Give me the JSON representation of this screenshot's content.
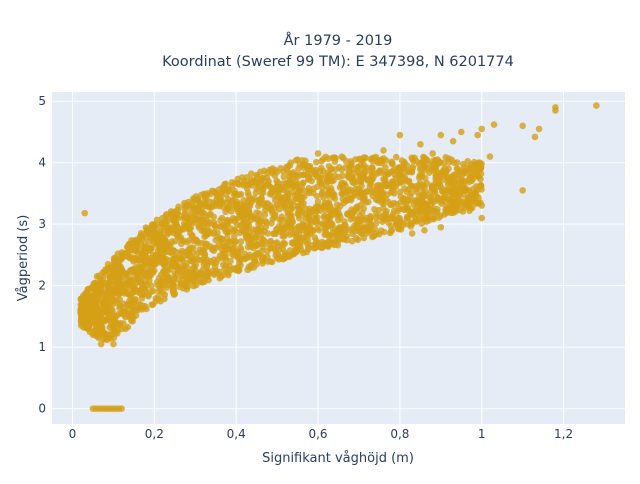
{
  "chart_data": {
    "type": "scatter",
    "title_line1": "År 1979 - 2019",
    "title_line2": "Koordinat (Sweref 99 TM): E 347398, N 6201774",
    "xlabel": "Signifikant våghöjd (m)",
    "ylabel": "Vågperiod (s)",
    "xlim": [
      -0.05,
      1.35
    ],
    "ylim": [
      -0.25,
      5.15
    ],
    "xticks": [
      0,
      0.2,
      0.4,
      0.6,
      0.8,
      1,
      1.2
    ],
    "xtick_labels": [
      "0",
      "0,2",
      "0,4",
      "0,6",
      "0,8",
      "1",
      "1,2"
    ],
    "yticks": [
      0,
      1,
      2,
      3,
      4,
      5
    ],
    "ytick_labels": [
      "0",
      "1",
      "2",
      "3",
      "4",
      "5"
    ],
    "grid": true,
    "marker_color": "#D4A017",
    "plot_bg": "#E5ECF6",
    "series": [
      {
        "envelope": {
          "x": [
            0.02,
            0.05,
            0.08,
            0.12,
            0.16,
            0.2,
            0.25,
            0.3,
            0.35,
            0.4,
            0.45,
            0.5,
            0.55,
            0.6,
            0.65,
            0.7,
            0.75,
            0.8,
            0.85,
            0.9,
            0.95,
            1.0
          ],
          "lower": [
            1.35,
            1.2,
            1.05,
            1.2,
            1.5,
            1.7,
            1.85,
            2.0,
            2.1,
            2.2,
            2.3,
            2.4,
            2.5,
            2.6,
            2.65,
            2.75,
            2.8,
            2.9,
            3.0,
            3.1,
            3.2,
            3.3
          ],
          "upper": [
            1.8,
            2.05,
            2.3,
            2.6,
            2.85,
            3.05,
            3.25,
            3.45,
            3.6,
            3.75,
            3.85,
            3.95,
            4.05,
            4.1,
            4.1,
            4.1,
            4.1,
            4.1,
            4.1,
            4.1,
            4.05,
            4.0
          ]
        },
        "zero_row": {
          "x_min": 0.05,
          "x_max": 0.12,
          "y": 0
        },
        "outliers": [
          [
            0.03,
            3.18
          ],
          [
            1.28,
            4.93
          ],
          [
            1.18,
            4.9
          ],
          [
            1.18,
            4.85
          ],
          [
            1.1,
            4.6
          ],
          [
            1.14,
            4.55
          ],
          [
            1.13,
            4.42
          ],
          [
            1.03,
            4.62
          ],
          [
            1.0,
            4.55
          ],
          [
            0.99,
            4.45
          ],
          [
            1.02,
            4.1
          ],
          [
            1.1,
            3.55
          ],
          [
            1.0,
            3.1
          ],
          [
            0.97,
            3.22
          ],
          [
            0.94,
            3.28
          ],
          [
            0.95,
            4.5
          ],
          [
            0.93,
            4.35
          ],
          [
            0.9,
            4.45
          ],
          [
            0.88,
            4.15
          ],
          [
            0.85,
            4.3
          ],
          [
            0.8,
            4.45
          ],
          [
            0.76,
            4.2
          ],
          [
            0.9,
            2.95
          ],
          [
            0.86,
            2.9
          ],
          [
            0.83,
            2.85
          ],
          [
            0.78,
            2.9
          ],
          [
            0.72,
            2.95
          ],
          [
            0.66,
            2.85
          ],
          [
            0.6,
            2.7
          ],
          [
            0.55,
            2.6
          ],
          [
            0.5,
            2.45
          ],
          [
            0.45,
            2.35
          ],
          [
            0.4,
            2.25
          ],
          [
            0.36,
            2.12
          ],
          [
            0.55,
            4.05
          ],
          [
            0.6,
            4.15
          ],
          [
            0.5,
            3.85
          ],
          [
            0.45,
            3.8
          ],
          [
            0.38,
            3.55
          ],
          [
            0.33,
            3.5
          ],
          [
            0.28,
            3.3
          ],
          [
            0.22,
            3.1
          ],
          [
            0.14,
            2.45
          ],
          [
            0.1,
            2.35
          ],
          [
            0.06,
            2.15
          ],
          [
            0.04,
            1.95
          ],
          [
            0.03,
            1.55
          ],
          [
            0.05,
            1.2
          ],
          [
            0.07,
            1.05
          ],
          [
            0.1,
            1.05
          ]
        ]
      }
    ]
  }
}
